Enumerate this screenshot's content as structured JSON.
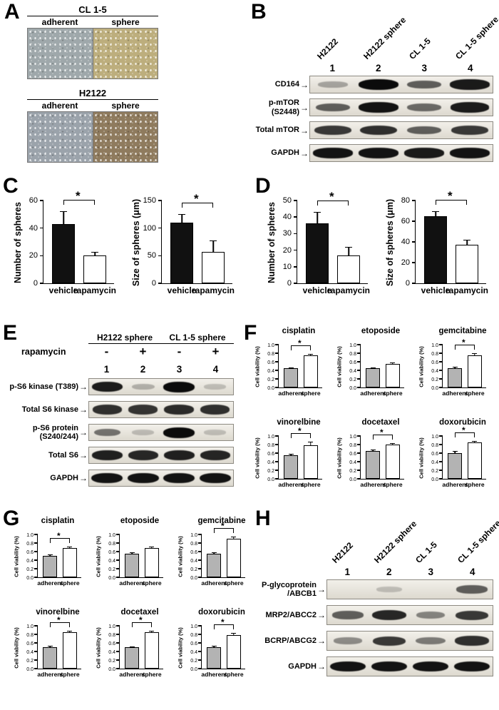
{
  "style": {
    "bar_black": "#111111",
    "bar_white": "#ffffff",
    "bar_gray": "#b3b3b3"
  },
  "figure": {
    "panels": {
      "A": {
        "letter": "A",
        "groups": [
          {
            "cell_line": "CL 1-5",
            "columns": [
              "adherent",
              "sphere"
            ],
            "image_colors": [
              "#9fa8ab",
              "#bdae7d"
            ]
          },
          {
            "cell_line": "H2122",
            "columns": [
              "adherent",
              "sphere"
            ],
            "image_colors": [
              "#9ba3ab",
              "#8f7b5e"
            ]
          }
        ]
      },
      "B": {
        "letter": "B",
        "arrow": "→",
        "lane_labels": [
          "H2122",
          "H2122 sphere",
          "CL 1-5",
          "CL 1-5 sphere"
        ],
        "lane_numbers": [
          "1",
          "2",
          "3",
          "4"
        ],
        "blots": [
          {
            "label": "CD164",
            "bands": [
              0.18,
              1.0,
              0.55,
              0.92
            ]
          },
          {
            "label": "p-mTOR (S2448)",
            "bands": [
              0.55,
              0.95,
              0.5,
              0.9
            ]
          },
          {
            "label": "Total mTOR",
            "bands": [
              0.75,
              0.8,
              0.55,
              0.75
            ]
          },
          {
            "label": "GAPDH",
            "bands": [
              0.95,
              0.95,
              0.92,
              0.95
            ]
          }
        ]
      },
      "C": {
        "letter": "C"
      },
      "D": {
        "letter": "D"
      },
      "E": {
        "letter": "E",
        "arrow": "→",
        "group_headers": [
          "H2122 sphere",
          "CL 1-5 sphere"
        ],
        "treatment_label": "rapamycin",
        "treatment_values": [
          "-",
          "+",
          "-",
          "+"
        ],
        "lane_numbers": [
          "1",
          "2",
          "3",
          "4"
        ],
        "blots": [
          {
            "label": "p-S6 kinase (T389)",
            "bands": [
              0.9,
              0.12,
              1.0,
              0.05
            ]
          },
          {
            "label": "Total S6 kinase",
            "bands": [
              0.8,
              0.78,
              0.82,
              0.8
            ]
          },
          {
            "label": "p-S6 protein (S240/244)",
            "bands": [
              0.45,
              0.06,
              1.0,
              0.05
            ]
          },
          {
            "label": "Total S6",
            "bands": [
              0.88,
              0.85,
              0.88,
              0.86
            ]
          },
          {
            "label": "GAPDH",
            "bands": [
              0.95,
              0.95,
              0.95,
              0.95
            ]
          }
        ]
      },
      "F": {
        "letter": "F"
      },
      "G": {
        "letter": "G"
      },
      "H": {
        "letter": "H",
        "arrow": "→",
        "lane_labels": [
          "H2122",
          "H2122 sphere",
          "CL 1-5",
          "CL 1-5 sphere"
        ],
        "lane_numbers": [
          "1",
          "2",
          "3",
          "4"
        ],
        "blots": [
          {
            "label": "P-glycoprotein /ABCB1",
            "bands": [
              0,
              0.05,
              0,
              0.55
            ]
          },
          {
            "label": "MRP2/ABCC2",
            "bands": [
              0.55,
              0.85,
              0.35,
              0.75
            ]
          },
          {
            "label": "BCRP/ABCG2",
            "bands": [
              0.3,
              0.75,
              0.4,
              0.8
            ]
          },
          {
            "label": "GAPDH",
            "bands": [
              0.95,
              0.95,
              0.95,
              0.95
            ]
          }
        ]
      }
    }
  },
  "chart_data": [
    {
      "id": "C-left",
      "type": "bar",
      "title": "",
      "ylabel": "Number of spheres",
      "ylim": [
        0,
        60
      ],
      "yticks": [
        "0",
        "20",
        "40",
        "60"
      ],
      "categories": [
        "vehicle",
        "rapamycin"
      ],
      "values": [
        43,
        20
      ],
      "errors": [
        9,
        3
      ],
      "sig": "*",
      "bar_fills": [
        "black",
        "white"
      ],
      "grid": false
    },
    {
      "id": "C-right",
      "type": "bar",
      "title": "",
      "ylabel": "Size of spheres (μm)",
      "ylim": [
        0,
        150
      ],
      "yticks": [
        "0",
        "50",
        "100",
        "150"
      ],
      "categories": [
        "vehicle",
        "rapamycin"
      ],
      "values": [
        110,
        57
      ],
      "errors": [
        15,
        20
      ],
      "sig": "*",
      "bar_fills": [
        "black",
        "white"
      ],
      "grid": false
    },
    {
      "id": "D-left",
      "type": "bar",
      "title": "",
      "ylabel": "Number of spheres",
      "ylim": [
        0,
        50
      ],
      "yticks": [
        "0",
        "10",
        "20",
        "30",
        "40",
        "50"
      ],
      "categories": [
        "vehicle",
        "rapamycin"
      ],
      "values": [
        36,
        17
      ],
      "errors": [
        7,
        5
      ],
      "sig": "*",
      "bar_fills": [
        "black",
        "white"
      ],
      "grid": false
    },
    {
      "id": "D-right",
      "type": "bar",
      "title": "",
      "ylabel": "Size of spheres (μm)",
      "ylim": [
        0,
        80
      ],
      "yticks": [
        "0",
        "20",
        "40",
        "60",
        "80"
      ],
      "categories": [
        "vehicle",
        "rapamycin"
      ],
      "values": [
        65,
        37
      ],
      "errors": [
        5,
        5
      ],
      "sig": "*",
      "bar_fills": [
        "black",
        "white"
      ],
      "grid": false
    },
    {
      "id": "F-cisplatin",
      "type": "bar",
      "title": "cisplatin",
      "ylabel": "Cell viability (%)",
      "ylim": [
        0,
        1.0
      ],
      "yticks": [
        "0.0",
        "0.2",
        "0.4",
        "0.6",
        "0.8",
        "1.0"
      ],
      "categories": [
        "adherent",
        "sphere"
      ],
      "values": [
        0.45,
        0.75
      ],
      "errors": [
        0.02,
        0.03
      ],
      "sig": "*",
      "bar_fills": [
        "gray",
        "white"
      ],
      "grid": false
    },
    {
      "id": "F-etoposide",
      "type": "bar",
      "title": "etoposide",
      "ylabel": "Cell viability (%)",
      "ylim": [
        0,
        1.0
      ],
      "yticks": [
        "0.0",
        "0.2",
        "0.4",
        "0.6",
        "0.8",
        "1.0"
      ],
      "categories": [
        "adherent",
        "sphere"
      ],
      "values": [
        0.45,
        0.55
      ],
      "errors": [
        0.02,
        0.04
      ],
      "sig": null,
      "bar_fills": [
        "gray",
        "white"
      ],
      "grid": false
    },
    {
      "id": "F-gemcitabine",
      "type": "bar",
      "title": "gemcitabine",
      "ylabel": "Cell viability (%)",
      "ylim": [
        0,
        1.0
      ],
      "yticks": [
        "0.0",
        "0.2",
        "0.4",
        "0.6",
        "0.8",
        "1.0"
      ],
      "categories": [
        "adherent",
        "sphere"
      ],
      "values": [
        0.45,
        0.75
      ],
      "errors": [
        0.03,
        0.05
      ],
      "sig": "*",
      "bar_fills": [
        "gray",
        "white"
      ],
      "grid": false
    },
    {
      "id": "F-vinorelbine",
      "type": "bar",
      "title": "vinorelbine",
      "ylabel": "Cell viability (%)",
      "ylim": [
        0,
        1.0
      ],
      "yticks": [
        "0.0",
        "0.2",
        "0.4",
        "0.6",
        "0.8",
        "1.0"
      ],
      "categories": [
        "adherent",
        "sphere"
      ],
      "values": [
        0.55,
        0.78
      ],
      "errors": [
        0.03,
        0.08
      ],
      "sig": "*",
      "bar_fills": [
        "gray",
        "white"
      ],
      "grid": false
    },
    {
      "id": "F-docetaxel",
      "type": "bar",
      "title": "docetaxel",
      "ylabel": "Cell viability (%)",
      "ylim": [
        0,
        1.0
      ],
      "yticks": [
        "0.0",
        "0.2",
        "0.4",
        "0.6",
        "0.8",
        "1.0"
      ],
      "categories": [
        "adherent",
        "sphere"
      ],
      "values": [
        0.65,
        0.8
      ],
      "errors": [
        0.03,
        0.04
      ],
      "sig": "*",
      "bar_fills": [
        "gray",
        "white"
      ],
      "grid": false
    },
    {
      "id": "F-doxorubicin",
      "type": "bar",
      "title": "doxorubicin",
      "ylabel": "Cell viability (%)",
      "ylim": [
        0,
        1.0
      ],
      "yticks": [
        "0.0",
        "0.2",
        "0.4",
        "0.6",
        "0.8",
        "1.0"
      ],
      "categories": [
        "adherent",
        "sphere"
      ],
      "values": [
        0.6,
        0.85
      ],
      "errors": [
        0.05,
        0.04
      ],
      "sig": "*",
      "bar_fills": [
        "gray",
        "white"
      ],
      "grid": false
    },
    {
      "id": "G-cisplatin",
      "type": "bar",
      "title": "cisplatin",
      "ylabel": "Cell viability (%)",
      "ylim": [
        0,
        1.0
      ],
      "yticks": [
        "0.0",
        "0.2",
        "0.4",
        "0.6",
        "0.8",
        "1.0"
      ],
      "categories": [
        "adherent",
        "sphere"
      ],
      "values": [
        0.5,
        0.68
      ],
      "errors": [
        0.03,
        0.03
      ],
      "sig": "*",
      "bar_fills": [
        "gray",
        "white"
      ],
      "grid": false
    },
    {
      "id": "G-etoposide",
      "type": "bar",
      "title": "etoposide",
      "ylabel": "Cell viability (%)",
      "ylim": [
        0,
        1.0
      ],
      "yticks": [
        "0.0",
        "0.2",
        "0.4",
        "0.6",
        "0.8",
        "1.0"
      ],
      "categories": [
        "adherent",
        "sphere"
      ],
      "values": [
        0.55,
        0.68
      ],
      "errors": [
        0.03,
        0.04
      ],
      "sig": null,
      "bar_fills": [
        "gray",
        "white"
      ],
      "grid": false
    },
    {
      "id": "G-gemcitabine",
      "type": "bar",
      "title": "gemcitabine",
      "ylabel": "Cell viability (%)",
      "ylim": [
        0,
        1.0
      ],
      "yticks": [
        "0.0",
        "0.2",
        "0.4",
        "0.6",
        "0.8",
        "1.0"
      ],
      "categories": [
        "adherent",
        "sphere"
      ],
      "values": [
        0.55,
        0.9
      ],
      "errors": [
        0.03,
        0.05
      ],
      "sig": "*",
      "bar_fills": [
        "gray",
        "white"
      ],
      "grid": false
    },
    {
      "id": "G-vinorelbine",
      "type": "bar",
      "title": "vinorelbine",
      "ylabel": "Cell viability (%)",
      "ylim": [
        0,
        1.0
      ],
      "yticks": [
        "0.0",
        "0.2",
        "0.4",
        "0.6",
        "0.8",
        "1.0"
      ],
      "categories": [
        "adherent",
        "sphere"
      ],
      "values": [
        0.5,
        0.85
      ],
      "errors": [
        0.03,
        0.04
      ],
      "sig": "*",
      "bar_fills": [
        "gray",
        "white"
      ],
      "grid": false
    },
    {
      "id": "G-docetaxel",
      "type": "bar",
      "title": "docetaxel",
      "ylabel": "Cell viability (%)",
      "ylim": [
        0,
        1.0
      ],
      "yticks": [
        "0.0",
        "0.2",
        "0.4",
        "0.6",
        "0.8",
        "1.0"
      ],
      "categories": [
        "adherent",
        "sphere"
      ],
      "values": [
        0.5,
        0.85
      ],
      "errors": [
        0.02,
        0.03
      ],
      "sig": "*",
      "bar_fills": [
        "gray",
        "white"
      ],
      "grid": false
    },
    {
      "id": "G-doxorubicin",
      "type": "bar",
      "title": "doxorubicin",
      "ylabel": "Cell viability (%)",
      "ylim": [
        0,
        1.0
      ],
      "yticks": [
        "0.0",
        "0.2",
        "0.4",
        "0.6",
        "0.8",
        "1.0"
      ],
      "categories": [
        "adherent",
        "sphere"
      ],
      "values": [
        0.5,
        0.78
      ],
      "errors": [
        0.03,
        0.05
      ],
      "sig": "*",
      "bar_fills": [
        "gray",
        "white"
      ],
      "grid": false
    }
  ]
}
